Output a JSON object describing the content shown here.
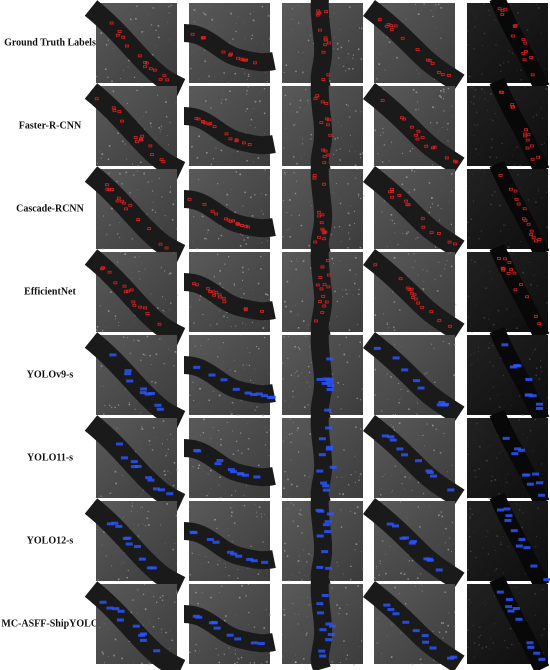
{
  "rows": [
    {
      "label": "Ground Truth Labels"
    },
    {
      "label": "Faster-R-CNN"
    },
    {
      "label": "Cascade-RCNN"
    },
    {
      "label": "EfficientNet"
    },
    {
      "label": "YOLOv9-s"
    },
    {
      "label": "YOLO11-s"
    },
    {
      "label": "YOLO12-s"
    },
    {
      "label": "MC-ASFF-ShipYOLO"
    }
  ]
}
